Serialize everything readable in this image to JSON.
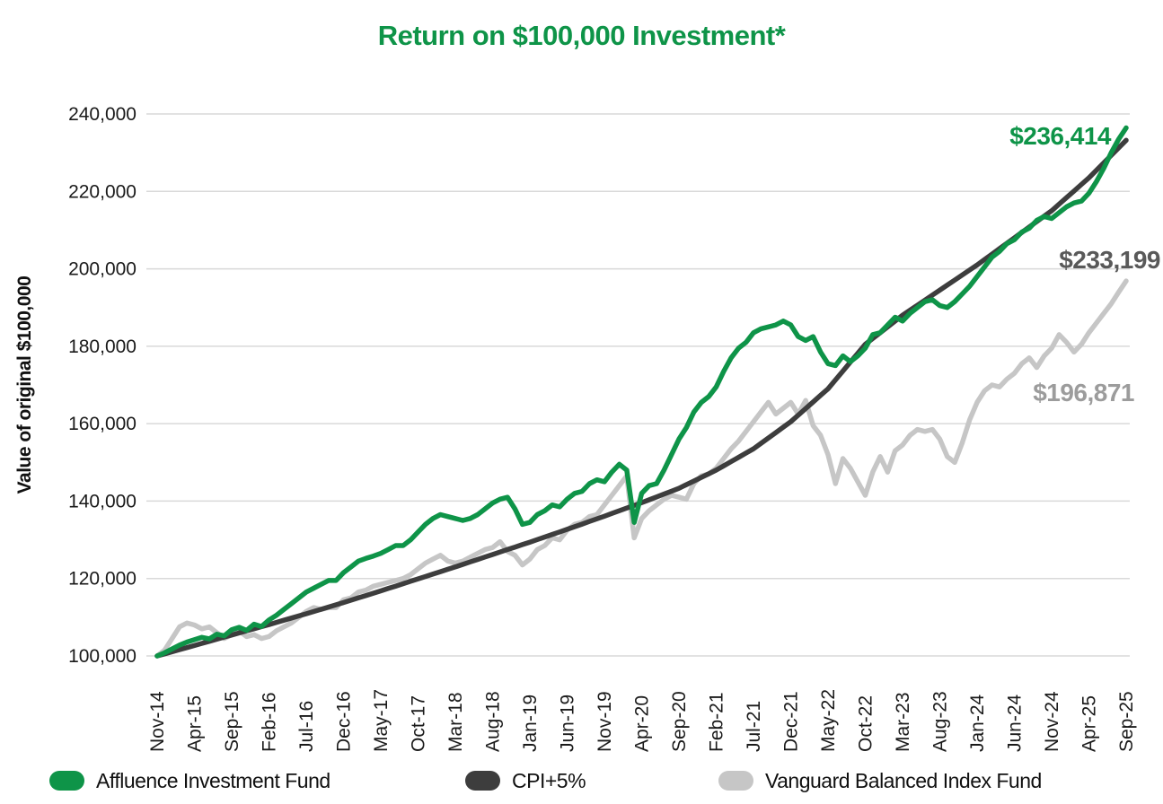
{
  "title": {
    "text": "Return on $100,000 Investment*",
    "color": "#0E9448"
  },
  "y_axis": {
    "title": "Value of original $100,000",
    "tick_labels": [
      "100,000",
      "120,000",
      "140,000",
      "160,000",
      "180,000",
      "200,000",
      "220,000",
      "240,000"
    ],
    "min": 100000,
    "max": 240000,
    "step": 20000
  },
  "x_axis": {
    "tick_labels": [
      "Nov-14",
      "Apr-15",
      "Sep-15",
      "Feb-16",
      "Jul-16",
      "Dec-16",
      "May-17",
      "Oct-17",
      "Mar-18",
      "Aug-18",
      "Jan-19",
      "Jun-19",
      "Nov-19",
      "Apr-20",
      "Sep-20",
      "Feb-21",
      "Jul-21",
      "Dec-21",
      "May-22",
      "Oct-22",
      "Mar-23",
      "Aug-23",
      "Jan-24",
      "Jun-24",
      "Nov-24",
      "Apr-25",
      "Sep-25"
    ],
    "tick_interval_months": 5
  },
  "chart_data": {
    "type": "line",
    "x_unit": "month",
    "x_start_label": "Nov-14",
    "x_end_label": "Sep-25",
    "months_total": 131,
    "ylim": [
      100000,
      240000
    ],
    "grid": "horizontal",
    "legend_position": "bottom",
    "grid_color": "#D9D9D9",
    "axis_text_color": "#1A1A1A",
    "series": [
      {
        "name": "Affluence Investment Fund",
        "color": "#0E9448",
        "end_label": "$236,414",
        "end_label_color": "#0E9448",
        "values": [
          100000,
          100800,
          101800,
          102800,
          103600,
          104200,
          104800,
          104400,
          105600,
          105200,
          106800,
          107400,
          106600,
          108200,
          107600,
          109300,
          110500,
          112000,
          113500,
          115000,
          116500,
          117500,
          118500,
          119500,
          119500,
          121500,
          123000,
          124500,
          125200,
          125800,
          126500,
          127500,
          128500,
          128500,
          130000,
          132000,
          134000,
          135500,
          136500,
          136000,
          135500,
          135000,
          135500,
          136500,
          138000,
          139500,
          140500,
          141000,
          138000,
          134000,
          134500,
          136500,
          137500,
          139000,
          138500,
          140500,
          142000,
          142500,
          144500,
          145500,
          145000,
          147500,
          149500,
          148000,
          134500,
          142000,
          144000,
          144500,
          148000,
          152000,
          156000,
          159000,
          163000,
          165500,
          167000,
          169500,
          173500,
          177000,
          179500,
          181000,
          183500,
          184500,
          185000,
          185500,
          186500,
          185500,
          182500,
          181500,
          182500,
          178500,
          175500,
          175000,
          177500,
          176000,
          177500,
          179500,
          183000,
          183500,
          185500,
          187500,
          186500,
          188500,
          190000,
          191500,
          192000,
          190500,
          190000,
          191500,
          193500,
          195500,
          198000,
          200500,
          203000,
          204500,
          206500,
          207500,
          209500,
          210500,
          212500,
          213500,
          213000,
          214500,
          216000,
          217000,
          217500,
          219500,
          222500,
          226000,
          230000,
          233500,
          236414
        ]
      },
      {
        "name": "CPI+5%",
        "color": "#3D3D3D",
        "end_label": "$233,199",
        "end_label_color": "#595959",
        "values": [
          100000,
          100540,
          101080,
          101620,
          102160,
          102700,
          103240,
          103780,
          104320,
          104860,
          105400,
          105940,
          106480,
          107020,
          107560,
          108100,
          108660,
          109220,
          109780,
          110340,
          110900,
          111480,
          112060,
          112640,
          113220,
          113800,
          114400,
          115000,
          115600,
          116200,
          116800,
          117420,
          118040,
          118660,
          119280,
          119900,
          120520,
          121140,
          121760,
          122380,
          123000,
          123640,
          124280,
          124920,
          125560,
          126200,
          126840,
          127480,
          128120,
          128760,
          129400,
          130060,
          130720,
          131380,
          132040,
          132700,
          133380,
          134060,
          134740,
          135420,
          136100,
          136800,
          137500,
          138200,
          138900,
          139600,
          140340,
          141080,
          141820,
          142560,
          143300,
          144240,
          145180,
          146120,
          147060,
          148000,
          149100,
          150200,
          151300,
          152400,
          153500,
          154900,
          156300,
          157700,
          159100,
          160500,
          162200,
          163900,
          165600,
          167300,
          169000,
          171300,
          173600,
          175900,
          178200,
          180500,
          182000,
          183500,
          185000,
          186500,
          188000,
          189300,
          190600,
          191900,
          193200,
          194500,
          195800,
          197100,
          198400,
          199700,
          201000,
          202400,
          203800,
          205200,
          206600,
          208000,
          209400,
          210800,
          212200,
          213600,
          215000,
          216700,
          218400,
          220100,
          221800,
          223500,
          225440,
          227380,
          229320,
          231260,
          233199
        ]
      },
      {
        "name": "Vanguard Balanced Index Fund",
        "color": "#C6C6C6",
        "end_label": "$196,871",
        "end_label_color": "#9C9C9C",
        "values": [
          100000,
          101500,
          104500,
          107500,
          108500,
          108000,
          107000,
          107500,
          106000,
          104500,
          105500,
          106500,
          105000,
          105500,
          104500,
          105000,
          106500,
          107500,
          108500,
          110000,
          111500,
          112500,
          112000,
          112500,
          112500,
          114500,
          115000,
          116500,
          117000,
          118000,
          118500,
          119000,
          119500,
          120000,
          121000,
          122500,
          124000,
          125000,
          126000,
          124500,
          124000,
          124500,
          125500,
          126500,
          127500,
          128000,
          129500,
          127000,
          126000,
          123500,
          125000,
          127500,
          128500,
          130500,
          130000,
          132500,
          134000,
          134500,
          136000,
          136500,
          139000,
          141500,
          144000,
          146500,
          130500,
          135500,
          137500,
          139000,
          140500,
          141500,
          141000,
          140500,
          144500,
          146500,
          147000,
          148500,
          151000,
          153500,
          155500,
          158000,
          160500,
          163000,
          165500,
          162500,
          164000,
          165500,
          162500,
          166000,
          159500,
          157000,
          152000,
          144500,
          151000,
          148500,
          145000,
          141500,
          147500,
          151500,
          147500,
          153000,
          154500,
          157000,
          158500,
          158000,
          158500,
          156000,
          151500,
          150000,
          155000,
          161000,
          165500,
          168500,
          170000,
          169500,
          171500,
          173000,
          175500,
          177000,
          174500,
          177500,
          179500,
          183000,
          181000,
          178500,
          180500,
          183500,
          186000,
          188500,
          191000,
          194000,
          196871
        ]
      }
    ]
  },
  "legend": {
    "items": [
      {
        "label": "Affluence Investment Fund",
        "color": "#0E9448"
      },
      {
        "label": "CPI+5%",
        "color": "#3D3D3D"
      },
      {
        "label": "Vanguard Balanced Index Fund",
        "color": "#C6C6C6"
      }
    ]
  }
}
